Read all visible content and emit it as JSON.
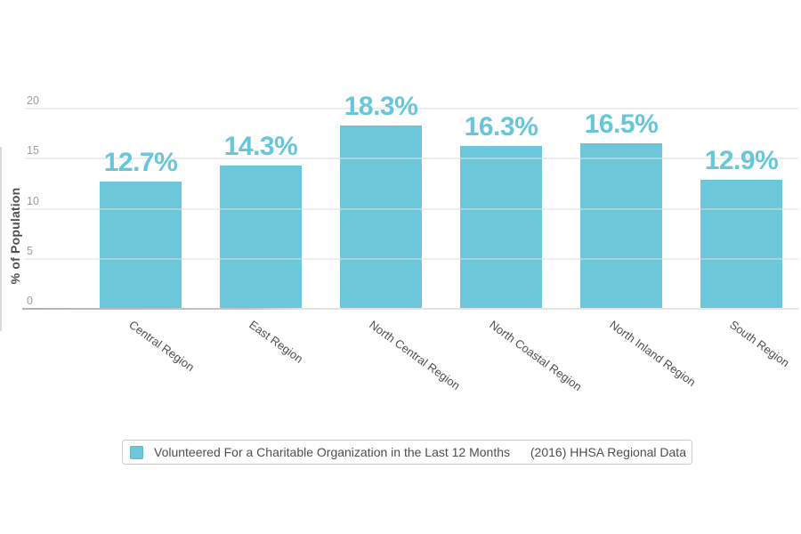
{
  "chart_data": {
    "type": "bar",
    "title": "",
    "categories": [
      "Central Region",
      "East Region",
      "North Central Region",
      "North Coastal Region",
      "North Inland Region",
      "South Region"
    ],
    "series": [
      {
        "name": "Volunteered For a Charitable Organization in the Last 12 Months",
        "values": [
          12.7,
          14.3,
          18.3,
          16.3,
          16.5,
          12.9
        ]
      }
    ],
    "value_labels": [
      "12.7%",
      "14.3%",
      "18.3%",
      "16.3%",
      "16.5%",
      "12.9%"
    ],
    "xlabel": "",
    "ylabel": "% of Population",
    "yticks": [
      0,
      5,
      10,
      15,
      20
    ],
    "ylim": [
      0,
      20
    ],
    "grid": true,
    "legend_position": "bottom",
    "colors": {
      "bar": "#6bc7d9",
      "value_label": "#67c6da",
      "legend_swatch": "#6bc7d9"
    }
  },
  "legend": {
    "series_label": "Volunteered For a Charitable Organization in the Last 12 Months",
    "source_label": "(2016) HHSA Regional Data"
  }
}
